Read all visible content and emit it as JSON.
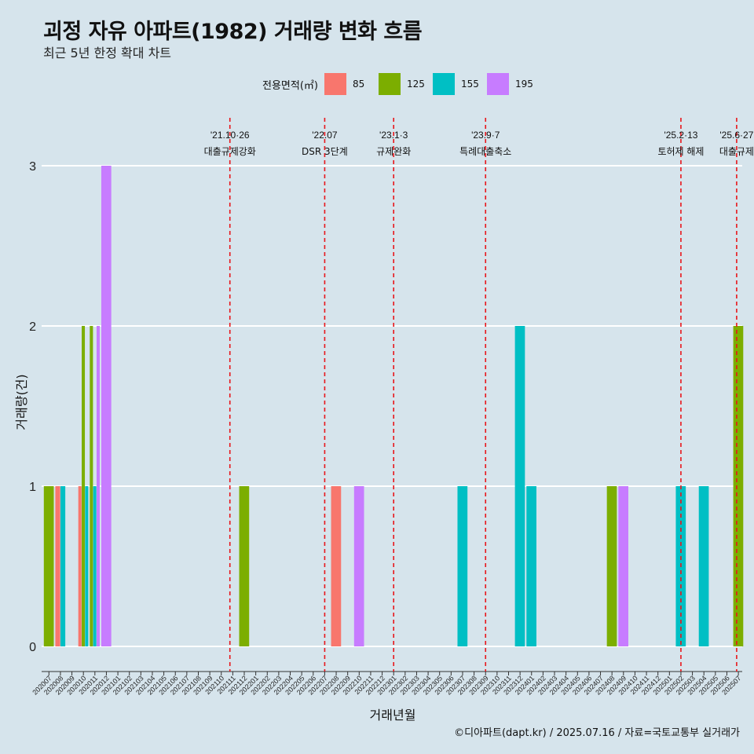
{
  "header": {
    "title": "괴정 자유 아파트(1982) 거래량 변화 흐름",
    "subtitle": "최근 5년 한정 확대 차트"
  },
  "legend": {
    "title": "전용면적(㎡)",
    "items": [
      {
        "label": "85",
        "color": "#f8766d"
      },
      {
        "label": "125",
        "color": "#7cae00"
      },
      {
        "label": "155",
        "color": "#00bfc4"
      },
      {
        "label": "195",
        "color": "#c77cff"
      }
    ]
  },
  "caption": "©디아파트(dapt.kr) / 2025.07.16 / 자료=국토교통부 실거래가",
  "chart_data": {
    "type": "bar",
    "xlabel": "거래년월",
    "ylabel": "거래량(건)",
    "ylim": [
      0,
      3
    ],
    "yticks": [
      0,
      1,
      2,
      3
    ],
    "grid": true,
    "legend_position": "top",
    "categories": [
      "202007",
      "202008",
      "202009",
      "202010",
      "202011",
      "202012",
      "202101",
      "202102",
      "202103",
      "202104",
      "202105",
      "202106",
      "202107",
      "202108",
      "202109",
      "202110",
      "202111",
      "202112",
      "202201",
      "202202",
      "202203",
      "202204",
      "202205",
      "202206",
      "202207",
      "202208",
      "202209",
      "202210",
      "202211",
      "202212",
      "202301",
      "202302",
      "202303",
      "202304",
      "202305",
      "202306",
      "202307",
      "202308",
      "202309",
      "202310",
      "202311",
      "202312",
      "202401",
      "202402",
      "202403",
      "202404",
      "202405",
      "202406",
      "202407",
      "202408",
      "202409",
      "202410",
      "202411",
      "202412",
      "202501",
      "202502",
      "202503",
      "202504",
      "202505",
      "202506",
      "202507"
    ],
    "series": [
      {
        "name": "85",
        "color": "#f8766d",
        "points": [
          [
            "202008",
            1
          ],
          [
            "202010",
            1
          ],
          [
            "202208",
            1
          ]
        ]
      },
      {
        "name": "125",
        "color": "#7cae00",
        "points": [
          [
            "202007",
            1
          ],
          [
            "202010",
            2
          ],
          [
            "202011",
            2
          ],
          [
            "202112",
            1
          ],
          [
            "202408",
            1
          ],
          [
            "202507",
            2
          ]
        ]
      },
      {
        "name": "155",
        "color": "#00bfc4",
        "points": [
          [
            "202008",
            1
          ],
          [
            "202010",
            1
          ],
          [
            "202011",
            1
          ],
          [
            "202307",
            1
          ],
          [
            "202312",
            2
          ],
          [
            "202401",
            1
          ],
          [
            "202502",
            1
          ],
          [
            "202504",
            1
          ]
        ]
      },
      {
        "name": "195",
        "color": "#c77cff",
        "points": [
          [
            "202011",
            2
          ],
          [
            "202012",
            3
          ],
          [
            "202210",
            1
          ],
          [
            "202409",
            1
          ]
        ]
      }
    ],
    "events": [
      {
        "date": "'21.10·26",
        "text": "대출규제강화",
        "at": "202110",
        "pos": 0.75
      },
      {
        "date": "'22.07",
        "text": "DSR 3단계",
        "at": "202207",
        "pos": 0.0
      },
      {
        "date": "'23.1·3",
        "text": "규제완화",
        "at": "202301",
        "pos": 0.0
      },
      {
        "date": "'23.9·7",
        "text": "특례대출축소",
        "at": "202309",
        "pos": 0.0
      },
      {
        "date": "'25.2·13",
        "text": "토허제 해제",
        "at": "202502",
        "pos": 0.0
      },
      {
        "date": "'25.6·27",
        "text": "대출규제",
        "at": "202506",
        "pos": 0.85
      }
    ]
  }
}
